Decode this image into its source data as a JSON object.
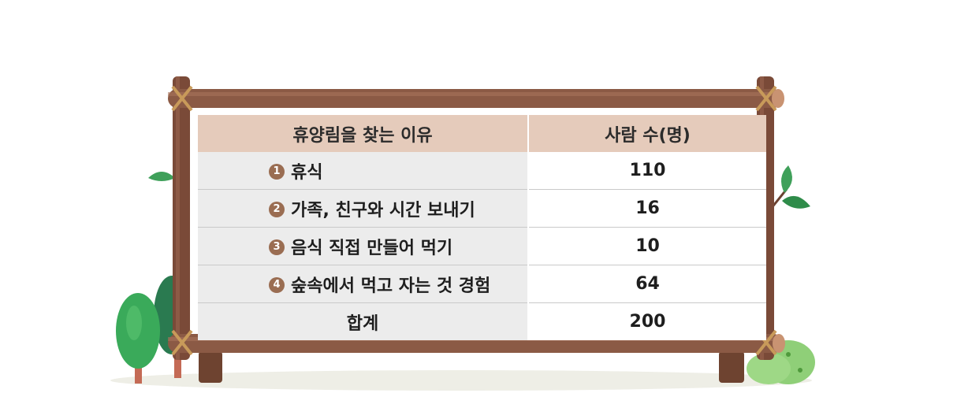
{
  "table": {
    "headers": [
      "휴양림을 찾는 이유",
      "사람  수(명)"
    ],
    "rows": [
      {
        "num": "1",
        "reason": "휴식",
        "count": "110"
      },
      {
        "num": "2",
        "reason": "가족, 친구와 시간 보내기",
        "count": "16"
      },
      {
        "num": "3",
        "reason": "음식 직접 만들어 먹기",
        "count": "10"
      },
      {
        "num": "4",
        "reason": "숲속에서 먹고 자는 것 경험",
        "count": "64"
      }
    ],
    "total": {
      "label": "합계",
      "count": "200"
    }
  },
  "colors": {
    "header_bg": "#e5cbbb",
    "row_bg": "#ececec",
    "wood": "#8b5a45",
    "number_badge": "#9a6d52",
    "leaf": "#3fa05a"
  },
  "icons": [
    "wooden-sign-frame",
    "rope-knot-icon",
    "tree-icon",
    "leaf-icon",
    "bush-icon"
  ]
}
